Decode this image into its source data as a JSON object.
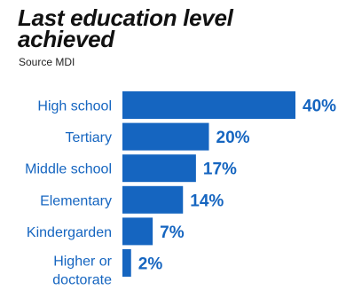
{
  "title": "Last education level achieved",
  "subtitle": "Source MDI",
  "colors": {
    "bar": "#1565c0",
    "category_label": "#1565c0",
    "value_label": "#1565c0"
  },
  "chart_data": {
    "type": "bar",
    "orientation": "horizontal",
    "title": "Last education level achieved",
    "subtitle": "Source MDI",
    "categories": [
      "High school",
      "Tertiary",
      "Middle school",
      "Elementary",
      "Kindergarden",
      "Higher or doctorate"
    ],
    "values": [
      40,
      20,
      17,
      14,
      7,
      2
    ],
    "value_labels": [
      "40%",
      "20%",
      "17%",
      "14%",
      "7%",
      "2%"
    ],
    "unit": "%",
    "xlabel": "",
    "ylabel": "",
    "xlim": [
      0,
      40
    ],
    "grid": false,
    "legend": "none"
  }
}
